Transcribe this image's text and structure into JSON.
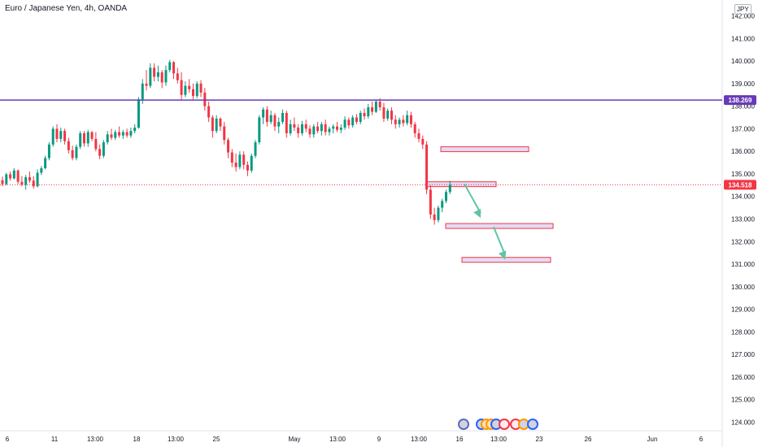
{
  "header": {
    "title": "Euro / Japanese Yen, 4h, OANDA",
    "currency": "JPY"
  },
  "chart_data": {
    "type": "candlestick",
    "symbol": "EURJPY",
    "timeframe": "4h",
    "source": "OANDA",
    "y_ticks": [
      124,
      125,
      126,
      127,
      128,
      129,
      130,
      131,
      132,
      133,
      134,
      135,
      136,
      137,
      138,
      139,
      140,
      141,
      142
    ],
    "ylim": [
      123.85,
      142.25
    ],
    "x_ticks": [
      "6",
      "11",
      "13:00",
      "18",
      "13:00",
      "25",
      "May",
      "13:00",
      "9",
      "13:00",
      "16",
      "13:00",
      "23",
      "26",
      "Jun",
      "6"
    ],
    "horizontal_line": {
      "price": 138.269,
      "label": "138.269",
      "color": "#673ab7"
    },
    "last_price": {
      "price": 134.518,
      "label": "134.518",
      "color": "#f23645"
    },
    "zones": [
      {
        "from_price": 136.05,
        "to_price": 136.2
      },
      {
        "from_price": 134.55,
        "to_price": 134.65
      },
      {
        "from_price": 132.65,
        "to_price": 132.8
      },
      {
        "from_price": 131.1,
        "to_price": 131.3
      }
    ],
    "arrows": [
      {
        "from": 134.55,
        "to": 133.05
      },
      {
        "from": 132.65,
        "to": 131.2
      }
    ],
    "candles": [
      [
        134.72,
        134.88,
        134.45,
        134.55
      ],
      [
        134.55,
        135.05,
        134.5,
        134.98
      ],
      [
        134.98,
        135.1,
        134.7,
        134.8
      ],
      [
        134.8,
        135.25,
        134.75,
        135.15
      ],
      [
        135.15,
        135.2,
        134.55,
        134.65
      ],
      [
        134.65,
        134.9,
        134.45,
        134.52
      ],
      [
        134.52,
        134.95,
        134.3,
        134.85
      ],
      [
        134.85,
        135.1,
        134.6,
        134.7
      ],
      [
        134.7,
        134.9,
        134.35,
        134.45
      ],
      [
        134.45,
        135.2,
        134.4,
        135.05
      ],
      [
        135.05,
        135.35,
        134.95,
        135.25
      ],
      [
        135.25,
        135.8,
        135.2,
        135.7
      ],
      [
        135.7,
        136.4,
        135.6,
        136.3
      ],
      [
        136.3,
        137.1,
        136.2,
        137.0
      ],
      [
        137.0,
        137.2,
        136.4,
        136.55
      ],
      [
        136.55,
        137.05,
        136.4,
        136.9
      ],
      [
        136.9,
        137.0,
        136.3,
        136.45
      ],
      [
        136.45,
        136.6,
        135.9,
        136.05
      ],
      [
        136.05,
        136.25,
        135.6,
        135.7
      ],
      [
        135.7,
        136.3,
        135.6,
        136.2
      ],
      [
        136.2,
        136.9,
        136.1,
        136.8
      ],
      [
        136.8,
        136.9,
        136.2,
        136.35
      ],
      [
        136.35,
        136.95,
        136.2,
        136.85
      ],
      [
        136.85,
        136.9,
        136.45,
        136.55
      ],
      [
        136.55,
        136.85,
        136.0,
        136.1
      ],
      [
        136.1,
        136.3,
        135.65,
        135.8
      ],
      [
        135.8,
        136.5,
        135.7,
        136.4
      ],
      [
        136.4,
        136.9,
        136.3,
        136.75
      ],
      [
        136.75,
        137.0,
        136.5,
        136.6
      ],
      [
        136.6,
        136.95,
        136.5,
        136.85
      ],
      [
        136.85,
        137.1,
        136.6,
        136.7
      ],
      [
        136.7,
        136.95,
        136.55,
        136.85
      ],
      [
        136.85,
        137.0,
        136.6,
        136.7
      ],
      [
        136.7,
        137.05,
        136.6,
        136.9
      ],
      [
        136.9,
        137.2,
        136.8,
        137.05
      ],
      [
        137.05,
        138.4,
        137.0,
        138.3
      ],
      [
        138.3,
        139.2,
        138.1,
        139.0
      ],
      [
        139.0,
        139.6,
        138.7,
        138.9
      ],
      [
        138.9,
        139.9,
        138.8,
        139.7
      ],
      [
        139.7,
        139.9,
        139.1,
        139.3
      ],
      [
        139.3,
        139.8,
        139.1,
        139.5
      ],
      [
        139.5,
        139.6,
        138.8,
        139.05
      ],
      [
        139.05,
        139.8,
        138.9,
        139.6
      ],
      [
        139.6,
        140.05,
        139.5,
        139.95
      ],
      [
        139.95,
        140.0,
        139.2,
        139.45
      ],
      [
        139.45,
        139.7,
        139.0,
        139.15
      ],
      [
        139.15,
        139.5,
        138.3,
        138.5
      ],
      [
        138.5,
        139.1,
        138.4,
        138.9
      ],
      [
        138.9,
        139.2,
        138.6,
        138.75
      ],
      [
        138.75,
        139.0,
        138.3,
        138.45
      ],
      [
        138.45,
        139.1,
        138.35,
        139.0
      ],
      [
        139.0,
        139.15,
        138.4,
        138.6
      ],
      [
        138.6,
        138.8,
        137.8,
        138.0
      ],
      [
        138.0,
        138.2,
        137.3,
        137.5
      ],
      [
        137.5,
        137.6,
        136.6,
        136.9
      ],
      [
        136.9,
        137.6,
        136.8,
        137.45
      ],
      [
        137.45,
        137.5,
        136.9,
        137.1
      ],
      [
        137.1,
        137.3,
        136.3,
        136.5
      ],
      [
        136.5,
        136.6,
        135.7,
        135.95
      ],
      [
        135.95,
        136.1,
        135.3,
        135.5
      ],
      [
        135.5,
        135.9,
        135.1,
        135.3
      ],
      [
        135.3,
        136.0,
        135.2,
        135.85
      ],
      [
        135.85,
        136.0,
        135.2,
        135.4
      ],
      [
        135.4,
        135.55,
        134.9,
        135.15
      ],
      [
        135.15,
        135.9,
        135.05,
        135.8
      ],
      [
        135.8,
        136.5,
        135.7,
        136.4
      ],
      [
        136.4,
        137.6,
        136.3,
        137.5
      ],
      [
        137.5,
        137.95,
        137.2,
        137.85
      ],
      [
        137.85,
        138.0,
        137.1,
        137.3
      ],
      [
        137.3,
        137.8,
        137.2,
        137.6
      ],
      [
        137.6,
        137.7,
        136.9,
        137.1
      ],
      [
        137.1,
        137.5,
        136.8,
        137.3
      ],
      [
        137.3,
        137.85,
        137.2,
        137.7
      ],
      [
        137.7,
        137.8,
        136.6,
        136.8
      ],
      [
        136.8,
        137.4,
        136.7,
        137.2
      ],
      [
        137.2,
        137.5,
        136.9,
        137.05
      ],
      [
        137.05,
        137.2,
        136.6,
        136.8
      ],
      [
        136.8,
        137.35,
        136.7,
        137.2
      ],
      [
        137.2,
        137.4,
        136.85,
        137.0
      ],
      [
        137.0,
        137.15,
        136.6,
        136.75
      ],
      [
        136.75,
        137.2,
        136.6,
        137.1
      ],
      [
        137.1,
        137.3,
        136.8,
        136.9
      ],
      [
        136.9,
        137.3,
        136.7,
        137.2
      ],
      [
        137.2,
        137.4,
        136.7,
        136.85
      ],
      [
        136.85,
        137.1,
        136.7,
        137.0
      ],
      [
        137.0,
        137.2,
        136.8,
        137.1
      ],
      [
        137.1,
        137.3,
        136.85,
        136.95
      ],
      [
        136.95,
        137.2,
        136.8,
        137.05
      ],
      [
        137.05,
        137.55,
        136.95,
        137.4
      ],
      [
        137.4,
        137.5,
        137.0,
        137.15
      ],
      [
        137.15,
        137.6,
        137.05,
        137.5
      ],
      [
        137.5,
        137.65,
        137.2,
        137.3
      ],
      [
        137.3,
        137.8,
        137.2,
        137.7
      ],
      [
        137.7,
        137.9,
        137.4,
        137.55
      ],
      [
        137.55,
        138.1,
        137.45,
        137.95
      ],
      [
        137.95,
        138.2,
        137.6,
        137.75
      ],
      [
        137.75,
        138.3,
        137.7,
        138.2
      ],
      [
        138.2,
        138.35,
        137.8,
        137.95
      ],
      [
        137.95,
        138.15,
        137.3,
        137.45
      ],
      [
        137.45,
        137.9,
        137.35,
        137.8
      ],
      [
        137.8,
        137.95,
        137.2,
        137.4
      ],
      [
        137.4,
        137.6,
        137.0,
        137.2
      ],
      [
        137.2,
        137.5,
        137.05,
        137.4
      ],
      [
        137.4,
        137.6,
        137.1,
        137.25
      ],
      [
        137.25,
        137.8,
        137.15,
        137.6
      ],
      [
        137.6,
        137.75,
        137.05,
        137.2
      ],
      [
        137.2,
        137.3,
        136.6,
        136.8
      ],
      [
        136.8,
        137.0,
        136.4,
        136.55
      ],
      [
        136.55,
        136.7,
        136.1,
        136.3
      ],
      [
        136.3,
        136.45,
        134.1,
        134.3
      ],
      [
        134.3,
        134.5,
        133.0,
        133.2
      ],
      [
        133.2,
        133.5,
        132.75,
        132.95
      ],
      [
        132.95,
        133.6,
        132.85,
        133.5
      ],
      [
        133.5,
        133.9,
        133.3,
        133.8
      ],
      [
        133.8,
        134.3,
        133.7,
        134.2
      ],
      [
        134.2,
        134.7,
        134.1,
        134.52
      ]
    ]
  }
}
